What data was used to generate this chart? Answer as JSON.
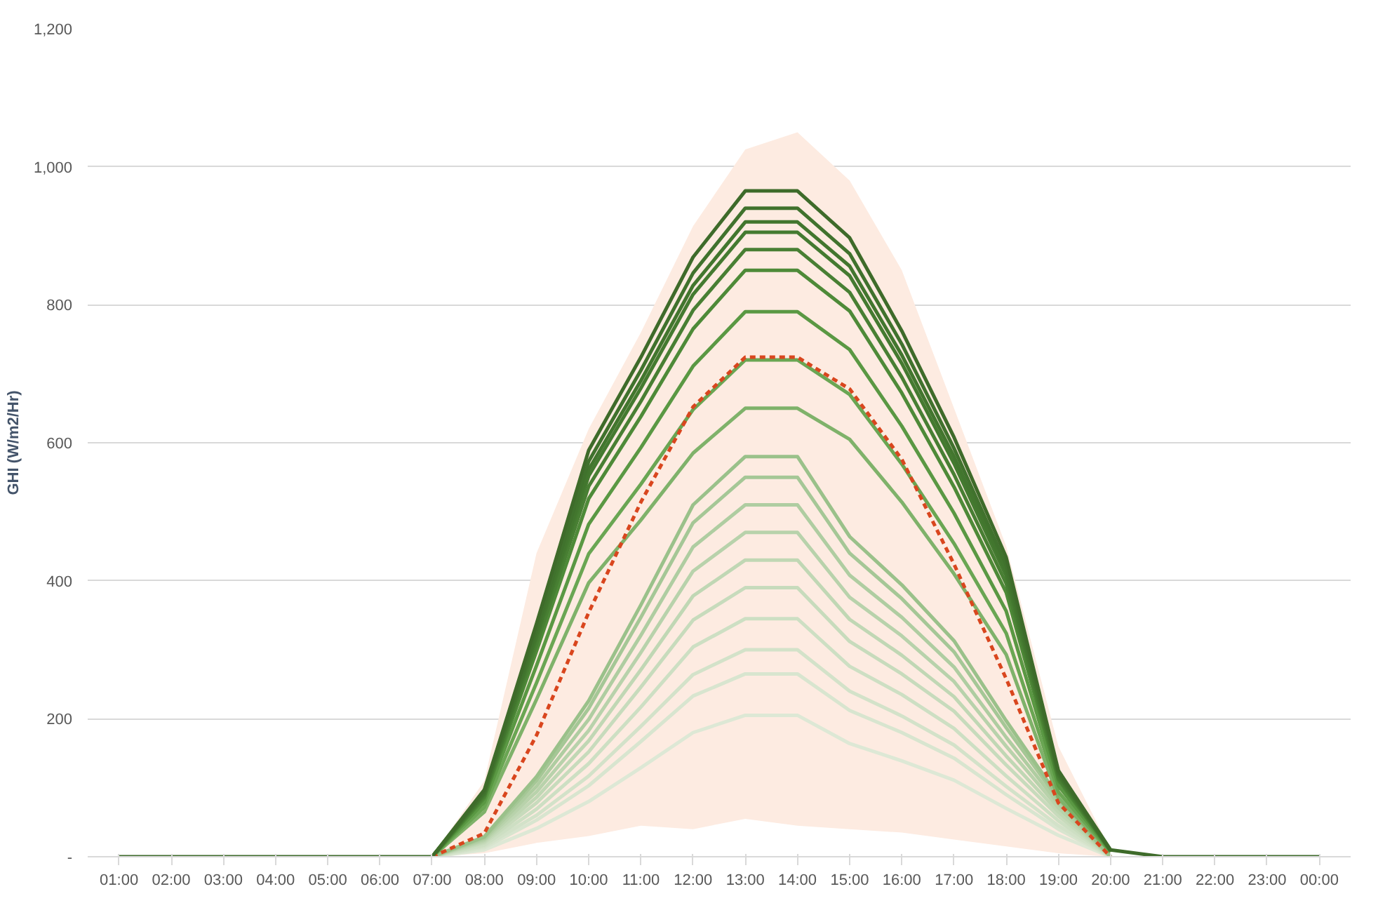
{
  "chart_data": {
    "type": "line",
    "ylabel": "GHI (W/m2/Hr)",
    "categories": [
      "01:00",
      "02:00",
      "03:00",
      "04:00",
      "05:00",
      "06:00",
      "07:00",
      "08:00",
      "09:00",
      "10:00",
      "11:00",
      "12:00",
      "13:00",
      "14:00",
      "15:00",
      "16:00",
      "17:00",
      "18:00",
      "19:00",
      "20:00",
      "21:00",
      "22:00",
      "23:00",
      "00:00"
    ],
    "ylim": [
      0,
      1200
    ],
    "yticks": [
      {
        "value": 0,
        "label": "-"
      },
      {
        "value": 200,
        "label": "200"
      },
      {
        "value": 400,
        "label": "400"
      },
      {
        "value": 600,
        "label": "600"
      },
      {
        "value": 800,
        "label": "800"
      },
      {
        "value": 1000,
        "label": "1,000"
      },
      {
        "value": 1200,
        "label": "1,200"
      }
    ],
    "grid": "y",
    "marker": "none",
    "line_style": "solid",
    "series": [
      {
        "color": "#dde8d5",
        "values": [
          null,
          null,
          null,
          null,
          null,
          null,
          0,
          10,
          41,
          80,
          129,
          180,
          205,
          205,
          164,
          139,
          111,
          70,
          31,
          0,
          null,
          null,
          null,
          null
        ]
      },
      {
        "color": "#d8e5cf",
        "values": [
          null,
          null,
          null,
          null,
          null,
          null,
          0,
          13,
          53,
          103,
          167,
          233,
          265,
          265,
          212,
          180,
          143,
          90,
          40,
          0,
          null,
          null,
          null,
          null
        ]
      },
      {
        "color": "#d3e2c9",
        "values": [
          null,
          null,
          null,
          null,
          null,
          null,
          0,
          15,
          60,
          117,
          189,
          264,
          300,
          300,
          240,
          204,
          162,
          102,
          45,
          0,
          null,
          null,
          null,
          null
        ]
      },
      {
        "color": "#cddfc3",
        "values": [
          null,
          null,
          null,
          null,
          null,
          null,
          0,
          17,
          69,
          135,
          217,
          304,
          345,
          345,
          276,
          235,
          186,
          117,
          52,
          0,
          null,
          null,
          null,
          null
        ]
      },
      {
        "color": "#c7dbbc",
        "values": [
          null,
          null,
          null,
          null,
          null,
          null,
          0,
          20,
          78,
          152,
          246,
          343,
          390,
          390,
          312,
          265,
          211,
          133,
          59,
          0,
          null,
          null,
          null,
          null
        ]
      },
      {
        "color": "#c0d7b4",
        "values": [
          null,
          null,
          null,
          null,
          null,
          null,
          0,
          22,
          86,
          168,
          271,
          378,
          430,
          430,
          344,
          292,
          232,
          146,
          65,
          0,
          null,
          null,
          null,
          null
        ]
      },
      {
        "color": "#b8d2ab",
        "values": [
          null,
          null,
          null,
          null,
          null,
          null,
          0,
          24,
          94,
          183,
          296,
          414,
          470,
          470,
          376,
          320,
          254,
          160,
          71,
          0,
          null,
          null,
          null,
          null
        ]
      },
      {
        "color": "#afcda1",
        "values": [
          null,
          null,
          null,
          null,
          null,
          null,
          0,
          26,
          102,
          199,
          321,
          449,
          510,
          510,
          408,
          347,
          275,
          173,
          77,
          0,
          null,
          null,
          null,
          null
        ]
      },
      {
        "color": "#a5c796",
        "values": [
          null,
          null,
          null,
          null,
          null,
          null,
          0,
          28,
          110,
          215,
          347,
          484,
          550,
          550,
          440,
          374,
          297,
          187,
          83,
          0,
          null,
          null,
          null,
          null
        ]
      },
      {
        "color": "#9ac18a",
        "values": [
          null,
          null,
          null,
          null,
          null,
          null,
          0,
          29,
          116,
          226,
          365,
          510,
          580,
          580,
          464,
          394,
          313,
          197,
          87,
          0,
          null,
          null,
          null,
          null
        ]
      },
      {
        "color": "#7fb26a",
        "values": [
          null,
          null,
          null,
          null,
          null,
          null,
          0,
          65,
          228,
          397,
          488,
          585,
          650,
          650,
          605,
          514,
          410,
          293,
          85,
          7,
          null,
          null,
          null,
          null
        ]
      },
      {
        "color": "#6aa653",
        "values": [
          null,
          null,
          null,
          null,
          null,
          null,
          0,
          72,
          252,
          439,
          540,
          648,
          720,
          720,
          670,
          569,
          454,
          324,
          94,
          7,
          null,
          null,
          null,
          null
        ]
      },
      {
        "color": "#5a9843",
        "values": [
          null,
          null,
          null,
          null,
          null,
          null,
          0,
          79,
          277,
          482,
          593,
          711,
          790,
          790,
          735,
          624,
          498,
          356,
          103,
          8,
          null,
          null,
          null,
          null
        ]
      },
      {
        "color": "#4e8a38",
        "values": [
          null,
          null,
          null,
          null,
          null,
          null,
          0,
          85,
          298,
          519,
          638,
          765,
          850,
          850,
          791,
          672,
          536,
          383,
          111,
          9,
          null,
          null,
          null,
          null
        ]
      },
      {
        "color": "#487f33",
        "values": [
          null,
          null,
          null,
          null,
          null,
          null,
          0,
          88,
          308,
          537,
          660,
          792,
          880,
          880,
          818,
          695,
          554,
          396,
          114,
          9,
          null,
          null,
          null,
          null
        ]
      },
      {
        "color": "#447a30",
        "values": [
          null,
          null,
          null,
          null,
          null,
          null,
          0,
          91,
          317,
          552,
          679,
          815,
          905,
          905,
          842,
          715,
          570,
          407,
          118,
          9,
          null,
          null,
          null,
          null
        ]
      },
      {
        "color": "#42762e",
        "values": [
          null,
          null,
          null,
          null,
          null,
          null,
          0,
          92,
          322,
          561,
          690,
          828,
          920,
          920,
          856,
          727,
          580,
          414,
          120,
          9,
          null,
          null,
          null,
          null
        ]
      },
      {
        "color": "#40722d",
        "values": [
          null,
          null,
          null,
          null,
          null,
          null,
          0,
          94,
          329,
          573,
          705,
          846,
          940,
          940,
          874,
          743,
          592,
          423,
          122,
          9,
          null,
          null,
          null,
          null
        ]
      },
      {
        "color": "#d9461e",
        "line_style": "dashed",
        "values": [
          null,
          null,
          null,
          null,
          null,
          null,
          0,
          34,
          176,
          354,
          514,
          652,
          724,
          724,
          678,
          576,
          424,
          258,
          78,
          0,
          null,
          null,
          null,
          null
        ],
        "lower": [
          null,
          null,
          null,
          null,
          null,
          null,
          0,
          5,
          20,
          30,
          45,
          40,
          55,
          45,
          40,
          35,
          25,
          15,
          5,
          0,
          null,
          null,
          null,
          null
        ],
        "upper": [
          null,
          null,
          null,
          null,
          null,
          null,
          0,
          110,
          440,
          620,
          760,
          914,
          1025,
          1050,
          980,
          850,
          650,
          450,
          160,
          10,
          null,
          null,
          null,
          null
        ]
      },
      {
        "color": "#3e6b2a",
        "values": [
          0,
          0,
          0,
          0,
          0,
          0,
          0,
          97,
          338,
          589,
          724,
          869,
          965,
          965,
          897,
          762,
          608,
          434,
          125,
          10,
          0,
          0,
          0,
          0
        ]
      }
    ]
  }
}
